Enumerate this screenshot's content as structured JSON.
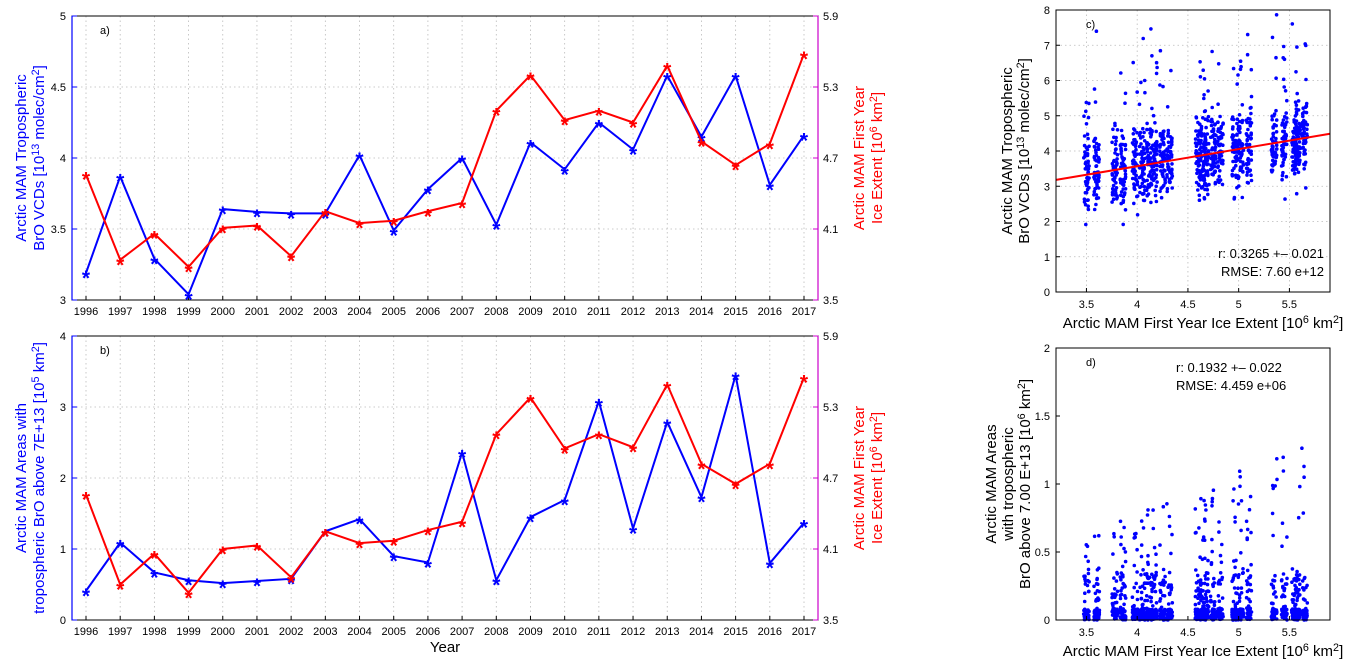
{
  "chart_data": [
    {
      "type": "line",
      "id": "a",
      "panel_label": "a)",
      "xlabel": "",
      "ylabel": "Arctic MAM Tropospheric BrO VCDs [10^13 molec/cm^2]",
      "y2label": "Arctic MAM First Year Ice Extent [10^6 km^2]",
      "x": [
        1996,
        1997,
        1998,
        1999,
        2000,
        2001,
        2002,
        2003,
        2004,
        2005,
        2006,
        2007,
        2008,
        2009,
        2010,
        2011,
        2012,
        2013,
        2014,
        2015,
        2016,
        2017
      ],
      "xtick_labels": [
        "1996",
        "1997",
        "1998",
        "1999",
        "2000",
        "2001",
        "2002",
        "2003",
        "2004",
        "2005",
        "2006",
        "2007",
        "2008",
        "2009",
        "2010",
        "2011",
        "2012",
        "2013",
        "2014",
        "2015",
        "2016",
        "2017"
      ],
      "ylim": [
        3,
        5
      ],
      "yticks": [
        "3",
        "3.5",
        "4",
        "4.5",
        "5"
      ],
      "y2lim": [
        3.5,
        5.9
      ],
      "y2ticks": [
        "3.5",
        "4.1",
        "4.7",
        "5.3",
        "5.9"
      ],
      "grid": true,
      "series": [
        {
          "axis": "left",
          "color": "#0000ff",
          "marker": "*",
          "values": [
            3.19,
            3.87,
            3.29,
            3.04,
            3.64,
            3.62,
            3.61,
            3.61,
            4.02,
            3.49,
            3.78,
            4.0,
            3.53,
            4.11,
            3.92,
            4.25,
            4.06,
            4.58,
            4.15,
            4.58,
            3.81,
            4.16
          ]
        },
        {
          "axis": "right",
          "color": "#ff0000",
          "marker": "*",
          "values": [
            4.56,
            3.84,
            4.06,
            3.78,
            4.11,
            4.13,
            3.87,
            4.25,
            4.15,
            4.17,
            4.25,
            4.32,
            5.1,
            5.4,
            5.02,
            5.1,
            5.0,
            5.48,
            4.84,
            4.64,
            4.82,
            5.58
          ]
        }
      ]
    },
    {
      "type": "line",
      "id": "b",
      "panel_label": "b)",
      "xlabel": "Year",
      "ylabel": "Arctic MAM Areas with tropospheric BrO above 7E+13 [10^5 km^2]",
      "y2label": "Arctic MAM First Year Ice Extent [10^6 km^2]",
      "x": [
        1996,
        1997,
        1998,
        1999,
        2000,
        2001,
        2002,
        2003,
        2004,
        2005,
        2006,
        2007,
        2008,
        2009,
        2010,
        2011,
        2012,
        2013,
        2014,
        2015,
        2016,
        2017
      ],
      "xtick_labels": [
        "1996",
        "1997",
        "1998",
        "1999",
        "2000",
        "2001",
        "2002",
        "2003",
        "2004",
        "2005",
        "2006",
        "2007",
        "2008",
        "2009",
        "2010",
        "2011",
        "2012",
        "2013",
        "2014",
        "2015",
        "2016",
        "2017"
      ],
      "ylim": [
        0,
        4
      ],
      "yticks": [
        "0",
        "1",
        "2",
        "3",
        "4"
      ],
      "y2lim": [
        3.5,
        5.9
      ],
      "y2ticks": [
        "3.5",
        "4.1",
        "4.7",
        "5.3",
        "5.9"
      ],
      "grid": true,
      "series": [
        {
          "axis": "left",
          "color": "#0000ff",
          "marker": "*",
          "values": [
            0.41,
            1.09,
            0.67,
            0.56,
            0.52,
            0.55,
            0.58,
            1.25,
            1.42,
            0.9,
            0.81,
            2.36,
            0.56,
            1.45,
            1.69,
            3.08,
            1.29,
            2.79,
            1.73,
            3.45,
            0.8,
            1.37
          ]
        },
        {
          "axis": "right",
          "color": "#ff0000",
          "marker": "*",
          "values": [
            4.56,
            3.8,
            4.06,
            3.73,
            4.1,
            4.13,
            3.86,
            4.25,
            4.15,
            4.17,
            4.26,
            4.33,
            5.07,
            5.38,
            4.95,
            5.07,
            4.96,
            5.49,
            4.82,
            4.65,
            4.82,
            5.55
          ]
        }
      ]
    },
    {
      "type": "scatter",
      "id": "c",
      "panel_label": "c)",
      "xlabel": "Arctic MAM First Year Ice Extent [10^6 km^2]",
      "ylabel": "Arctic MAM Tropospheric BrO VCDs [10^13 molec/cm^2]",
      "xlim": [
        3.2,
        5.9
      ],
      "xticks": [
        "3.5",
        "4",
        "4.5",
        "5",
        "5.5"
      ],
      "ylim": [
        0,
        8
      ],
      "yticks": [
        "0",
        "1",
        "2",
        "3",
        "4",
        "5",
        "6",
        "7",
        "8"
      ],
      "grid": true,
      "color": "#0000ff",
      "clusters_x": [
        3.5,
        3.6,
        3.78,
        3.86,
        3.98,
        4.05,
        4.12,
        4.17,
        4.25,
        4.32,
        4.6,
        4.65,
        4.68,
        4.75,
        4.82,
        4.96,
        5.02,
        5.1,
        5.35,
        5.45,
        5.55,
        5.58,
        5.65
      ],
      "fit_line": {
        "color": "#ff0000",
        "x": [
          3.2,
          5.9
        ],
        "y": [
          3.18,
          4.49
        ]
      },
      "annotations": [
        "r: 0.3265 +– 0.021",
        "RMSE: 7.60 e+12"
      ]
    },
    {
      "type": "scatter",
      "id": "d",
      "panel_label": "d)",
      "xlabel": "Arctic MAM First Year Ice Extent [10^6 km^2]",
      "ylabel": "Arctic MAM Areas with tropospheric BrO above 7.00 E+13 [10^6 km^2]",
      "xlim": [
        3.2,
        5.9
      ],
      "xticks": [
        "3.5",
        "4",
        "4.5",
        "5",
        "5.5"
      ],
      "ylim": [
        0,
        2
      ],
      "yticks": [
        "0",
        "0.5",
        "1",
        "1.5",
        "2"
      ],
      "grid": false,
      "color": "#0000ff",
      "clusters_x": [
        3.5,
        3.6,
        3.78,
        3.86,
        3.98,
        4.05,
        4.12,
        4.17,
        4.25,
        4.32,
        4.6,
        4.65,
        4.68,
        4.75,
        4.82,
        4.96,
        5.02,
        5.1,
        5.35,
        5.45,
        5.55,
        5.58,
        5.65
      ],
      "annotations": [
        "r: 0.1932 +– 0.022",
        "RMSE: 4.459 e+06"
      ]
    }
  ]
}
